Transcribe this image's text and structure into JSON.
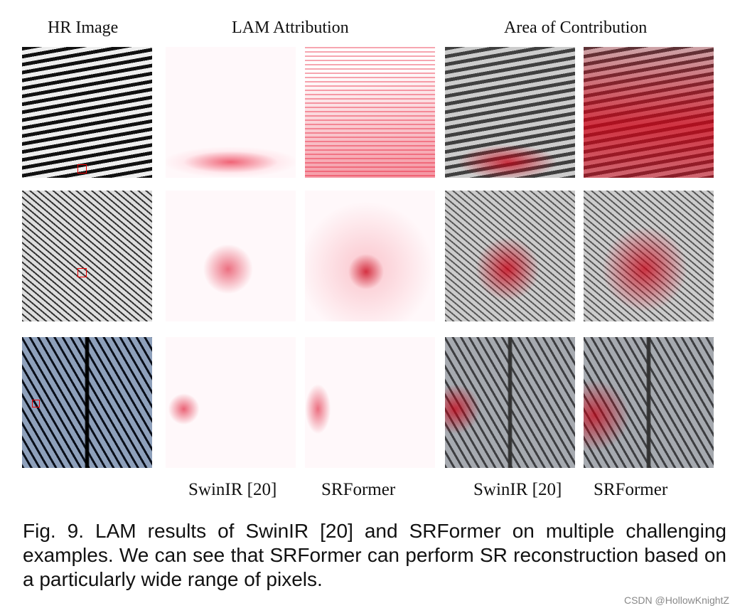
{
  "headers": {
    "hr": "HR Image",
    "lam": "LAM  Attribution",
    "area": "Area of Contribution"
  },
  "column_labels": [
    "SwinIR [20]",
    "SRFormer",
    "SwinIR [20]",
    "SRFormer"
  ],
  "caption": "Fig. 9.  LAM results of SwinIR [20] and SRFormer on multiple challenging examples. We can see that SRFormer can perform SR reconstruction based on a particularly wide range of pixels.",
  "watermark": "CSDN @HollowKnightZ",
  "colors": {
    "attribution": "#e0001a",
    "text": "#111111"
  }
}
